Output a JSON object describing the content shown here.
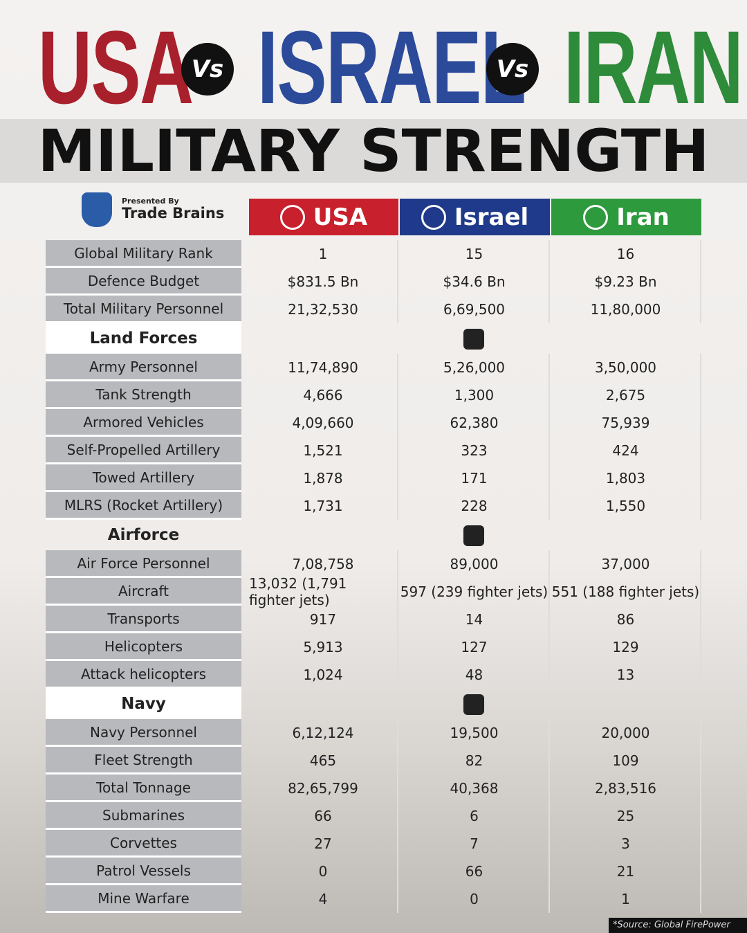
{
  "header": {
    "title": [
      {
        "text": "USA",
        "color": "#a8202c"
      },
      {
        "text": "Vs"
      },
      {
        "text": "ISRAEL",
        "color": "#2c4a9a"
      },
      {
        "text": "Vs"
      },
      {
        "text": "IRAN",
        "color": "#2e8b3a"
      }
    ],
    "subtitle": "MILITARY STRENGTH",
    "presented_by": "Presented By",
    "brand": "Trade Brains"
  },
  "table": {
    "columns": [
      {
        "name": "USA",
        "color": "#c8202c"
      },
      {
        "name": "Israel",
        "color": "#1f3a8a"
      },
      {
        "name": "Iran",
        "color": "#2e9a3e"
      }
    ],
    "sections": [
      {
        "rows": [
          [
            "Global Military Rank",
            "1",
            "15",
            "16"
          ],
          [
            "Defence Budget",
            "$831.5 Bn",
            "$34.6 Bn",
            "$9.23 Bn"
          ],
          [
            "Total Military Personnel",
            "21,32,530",
            "6,69,500",
            "11,80,000"
          ]
        ]
      },
      {
        "heading": "Land Forces",
        "rows": [
          [
            "Army Personnel",
            "11,74,890",
            "5,26,000",
            "3,50,000"
          ],
          [
            "Tank Strength",
            "4,666",
            "1,300",
            "2,675"
          ],
          [
            "Armored Vehicles",
            "4,09,660",
            "62,380",
            "75,939"
          ],
          [
            "Self-Propelled Artillery",
            "1,521",
            "323",
            "424"
          ],
          [
            "Towed Artillery",
            "1,878",
            "171",
            "1,803"
          ],
          [
            "MLRS (Rocket Artillery)",
            "1,731",
            "228",
            "1,550"
          ]
        ]
      },
      {
        "heading": "Airforce",
        "rows": [
          [
            "Air Force Personnel",
            "7,08,758",
            "89,000",
            "37,000"
          ],
          [
            "Aircraft",
            "13,032 (1,791 fighter jets)",
            "597 (239 fighter jets)",
            "551 (188 fighter jets)"
          ],
          [
            "Transports",
            "917",
            "14",
            "86"
          ],
          [
            "Helicopters",
            "5,913",
            "127",
            "129"
          ],
          [
            "Attack helicopters",
            "1,024",
            "48",
            "13"
          ]
        ]
      },
      {
        "heading": "Navy",
        "rows": [
          [
            "Navy Personnel",
            "6,12,124",
            "19,500",
            "20,000"
          ],
          [
            "Fleet Strength",
            "465",
            "82",
            "109"
          ],
          [
            "Total Tonnage",
            "82,65,799",
            "40,368",
            "2,83,516"
          ],
          [
            "Submarines",
            "66",
            "6",
            "25"
          ],
          [
            "Corvettes",
            "27",
            "7",
            "3"
          ],
          [
            "Patrol Vessels",
            "0",
            "66",
            "21"
          ],
          [
            "Mine Warfare",
            "4",
            "0",
            "1"
          ]
        ]
      }
    ]
  },
  "source": "*Source: Global FirePower"
}
